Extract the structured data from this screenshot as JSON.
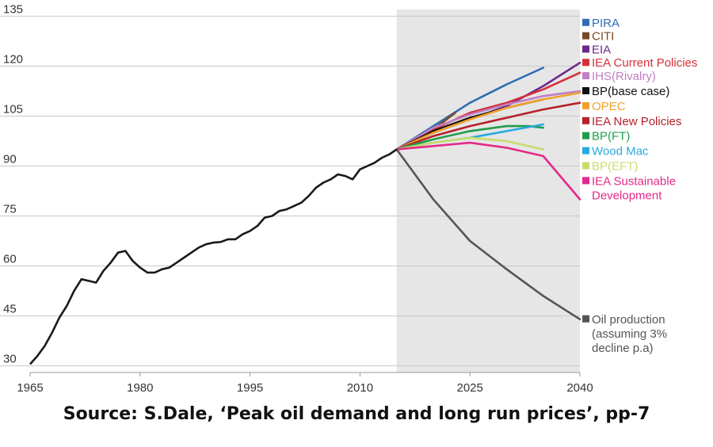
{
  "caption": "Source: S.Dale, ‘Peak oil demand and long run prices’, pp-7",
  "chart_data": {
    "type": "line",
    "title": "",
    "xlabel": "",
    "ylabel": "",
    "xlim": [
      1965,
      2040
    ],
    "ylim": [
      28,
      137
    ],
    "x_ticks": [
      1965,
      1980,
      1995,
      2010,
      2025,
      2040
    ],
    "y_ticks": [
      30,
      45,
      60,
      75,
      90,
      105,
      120,
      135
    ],
    "grid": "horizontal",
    "forecast_shading_x": [
      2015,
      2040
    ],
    "history": {
      "color": "#1a1a1a",
      "x": [
        1965,
        1966,
        1967,
        1968,
        1969,
        1970,
        1971,
        1972,
        1973,
        1974,
        1975,
        1976,
        1977,
        1978,
        1979,
        1980,
        1981,
        1982,
        1983,
        1984,
        1985,
        1986,
        1987,
        1988,
        1989,
        1990,
        1991,
        1992,
        1993,
        1994,
        1995,
        1996,
        1997,
        1998,
        1999,
        2000,
        2001,
        2002,
        2003,
        2004,
        2005,
        2006,
        2007,
        2008,
        2009,
        2010,
        2011,
        2012,
        2013,
        2014,
        2015
      ],
      "values": [
        30.5,
        33,
        36,
        40,
        44.5,
        48,
        52.5,
        56,
        55.5,
        55,
        58.5,
        61,
        64,
        64.5,
        61.5,
        59.5,
        58,
        58,
        59,
        59.5,
        61,
        62.5,
        64,
        65.5,
        66.5,
        67,
        67.2,
        68,
        68,
        69.5,
        70.5,
        72,
        74.5,
        75,
        76.5,
        77,
        78,
        79,
        81,
        83.5,
        85,
        86,
        87.5,
        87,
        86,
        89,
        90,
        91,
        92.5,
        93.5,
        95
      ]
    },
    "series": [
      {
        "name": "PIRA",
        "color": "#2e6db4",
        "x": [
          2015,
          2020,
          2025,
          2030,
          2035
        ],
        "values": [
          95,
          102,
          109,
          114.5,
          119.5
        ]
      },
      {
        "name": "CITI",
        "color": "#7a4a26",
        "x": [
          2015,
          2020,
          2023
        ],
        "values": [
          95,
          101,
          106
        ]
      },
      {
        "name": "EIA",
        "color": "#6b2a8a",
        "x": [
          2015,
          2020,
          2025,
          2030,
          2035,
          2040
        ],
        "values": [
          95,
          100,
          104,
          108,
          114,
          121
        ]
      },
      {
        "name": "IEA Current Policies",
        "color": "#d6303a",
        "x": [
          2015,
          2020,
          2025,
          2030,
          2035,
          2040
        ],
        "values": [
          95,
          101,
          106,
          109,
          113,
          118
        ]
      },
      {
        "name": "IHS(Rivalry)",
        "color": "#c17fc4",
        "x": [
          2015,
          2020,
          2025,
          2030,
          2035,
          2040
        ],
        "values": [
          95,
          101.5,
          105.5,
          108.5,
          111,
          112.5
        ]
      },
      {
        "name": "BP(base case)",
        "color": "#111111",
        "x": [
          2015,
          2020,
          2025,
          2030,
          2035
        ],
        "values": [
          95,
          100.5,
          104.5,
          107.5,
          110
        ]
      },
      {
        "name": "OPEC",
        "color": "#f2a22b",
        "x": [
          2015,
          2020,
          2025,
          2030,
          2035,
          2040
        ],
        "values": [
          95,
          100,
          104,
          107.5,
          110,
          112
        ]
      },
      {
        "name": "IEA New Policies",
        "color": "#b5222a",
        "x": [
          2015,
          2020,
          2025,
          2030,
          2035,
          2040
        ],
        "values": [
          95,
          99,
          102,
          104.5,
          107,
          109
        ]
      },
      {
        "name": "BP(FT)",
        "color": "#1f9e4a",
        "x": [
          2015,
          2020,
          2025,
          2030,
          2033,
          2035
        ],
        "values": [
          95,
          98,
          100.5,
          102,
          102,
          101.5
        ]
      },
      {
        "name": "Wood Mac",
        "color": "#29a9df",
        "x": [
          2015,
          2020,
          2025,
          2030,
          2035
        ],
        "values": [
          95,
          97,
          98.5,
          100.5,
          102.5
        ]
      },
      {
        "name": "BP(EFT)",
        "color": "#c9dc6a",
        "x": [
          2015,
          2020,
          2025,
          2030,
          2035
        ],
        "values": [
          95,
          97,
          98.5,
          97.5,
          95
        ]
      },
      {
        "name": "IEA Sustainable Development",
        "color": "#e3298a",
        "x": [
          2015,
          2020,
          2025,
          2030,
          2035,
          2040
        ],
        "values": [
          95,
          96,
          97,
          95.5,
          93,
          80
        ]
      },
      {
        "name": "Oil production (assuming 3% decline p.a)",
        "color": "#555555",
        "x": [
          2015,
          2020,
          2025,
          2030,
          2035,
          2040
        ],
        "values": [
          95,
          80,
          67.5,
          59,
          51,
          44
        ]
      }
    ]
  },
  "legend": [
    {
      "lines": [
        "PIRA"
      ],
      "color": "#2e6db4",
      "ref": 133
    },
    {
      "lines": [
        "CITI"
      ],
      "color": "#7a4a26",
      "ref": 129
    },
    {
      "lines": [
        "EIA"
      ],
      "color": "#6b2a8a",
      "ref": 125
    },
    {
      "lines": [
        "IEA Current Policies"
      ],
      "color": "#d6303a",
      "ref": 121
    },
    {
      "lines": [
        "IHS(Rivalry)"
      ],
      "color": "#c17fc4",
      "ref": 117
    },
    {
      "lines": [
        "BP(base case)"
      ],
      "color": "#111111",
      "ref": 112.5
    },
    {
      "lines": [
        "OPEC"
      ],
      "color": "#f2a22b",
      "ref": 108
    },
    {
      "lines": [
        "IEA New Policies"
      ],
      "color": "#b5222a",
      "ref": 103.5
    },
    {
      "lines": [
        "BP(FT)"
      ],
      "color": "#1f9e4a",
      "ref": 99
    },
    {
      "lines": [
        "Wood Mac"
      ],
      "color": "#29a9df",
      "ref": 94.5
    },
    {
      "lines": [
        "BP(EFT)"
      ],
      "color": "#c9dc6a",
      "ref": 90
    },
    {
      "lines": [
        "IEA Sustainable",
        "Development"
      ],
      "color": "#e3298a",
      "ref": 85.5
    },
    {
      "lines": [
        "Oil production",
        "(assuming 3%",
        "decline p.a)"
      ],
      "color": "#555555",
      "ref": 44
    }
  ]
}
